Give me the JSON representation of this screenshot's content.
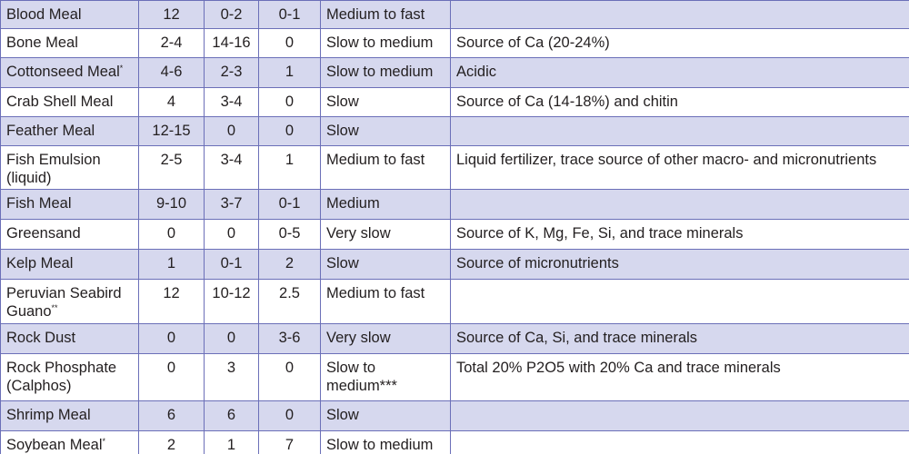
{
  "table": {
    "rows": [
      {
        "cells": [
          "Blood Meal",
          "12",
          "0-2",
          "0-1",
          "Medium to fast"
        ]
      },
      {
        "cells": [
          "Bone Meal",
          "2-4",
          "14-16",
          "0",
          "Slow to medium",
          "Source of Ca (20-24%)"
        ]
      },
      {
        "cells": [
          "Cottonseed Meal",
          "4-6",
          "2-3",
          "1",
          "Slow to medium",
          "Acidic"
        ],
        "sup": "*"
      },
      {
        "cells": [
          "Crab Shell Meal",
          "4",
          "3-4",
          "0",
          "Slow",
          "Source of Ca (14-18%) and chitin"
        ]
      },
      {
        "cells": [
          "Feather Meal",
          "12-15",
          "0",
          "0",
          "Slow"
        ]
      },
      {
        "cells": [
          "Fish Emulsion (liquid)",
          "2-5",
          "3-4",
          "1",
          "Medium to fast",
          "Liquid fertilizer, trace source of other macro- and micronutrients"
        ]
      },
      {
        "cells": [
          "Fish Meal",
          "9-10",
          "3-7",
          "0-1",
          "Medium"
        ]
      },
      {
        "cells": [
          "Greensand",
          "0",
          "0",
          "0-5",
          "Very slow",
          "Source of K, Mg, Fe, Si, and trace minerals"
        ]
      },
      {
        "cells": [
          "Kelp Meal",
          "1",
          "0-1",
          "2",
          "Slow",
          "Source of micronutrients"
        ]
      },
      {
        "cells": [
          "Peruvian Seabird Guano",
          "12",
          "10-12",
          "2.5",
          "Medium to fast"
        ],
        "sup": "**"
      },
      {
        "cells": [
          "Rock Dust",
          "0",
          "0",
          "3-6",
          "Very slow",
          "Source of Ca, Si, and trace minerals"
        ]
      },
      {
        "cells": [
          "Rock Phosphate (Calphos)",
          "0",
          "3",
          "0",
          "Slow to medium***",
          "Total 20% P2O5 with 20% Ca and trace minerals"
        ]
      },
      {
        "cells": [
          "Shrimp Meal",
          "6",
          "6",
          "0",
          "Slow"
        ]
      },
      {
        "cells": [
          "Soybean Meal",
          "2",
          "1",
          "7",
          "Slow to medium"
        ],
        "sup": "*"
      }
    ]
  }
}
